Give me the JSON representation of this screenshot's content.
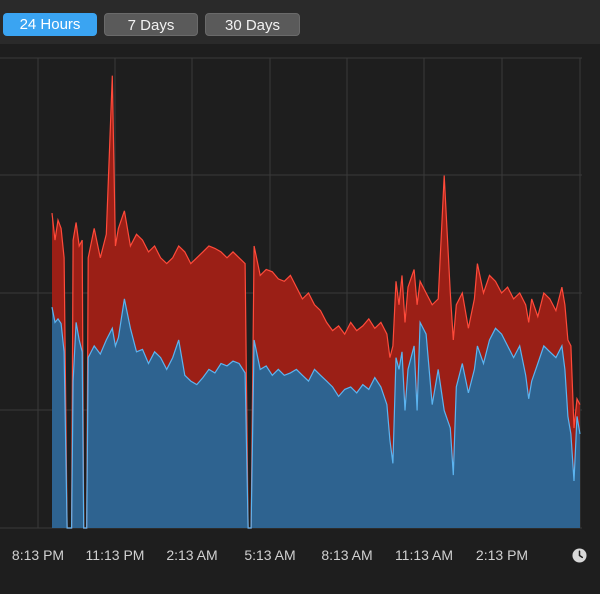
{
  "toolbar": {
    "tabs": [
      {
        "label": "24 Hours",
        "active": true
      },
      {
        "label": "7 Days",
        "active": false
      },
      {
        "label": "30 Days",
        "active": false
      }
    ]
  },
  "colors": {
    "series_top": "#9b1f16",
    "series_top_line": "#ff4a3a",
    "series_bottom": "#2e6390",
    "series_bottom_line": "#5bb4f0",
    "grid": "#3a3a3a",
    "active_tab": "#3aa4f2"
  },
  "icons": {
    "time_icon": "clock-icon"
  },
  "chart_data": {
    "type": "area",
    "stacked": true,
    "grid": true,
    "x_tick_labels": [
      "8:13 PM",
      "11:13 PM",
      "2:13 AM",
      "5:13 AM",
      "8:13 AM",
      "11:13 AM",
      "2:13 PM"
    ],
    "x_hours_span": [
      0,
      20.6
    ],
    "y_range": [
      0,
      4
    ],
    "series": [
      {
        "role": "bottom",
        "samples": [
          [
            0.0,
            1.88
          ],
          [
            0.1,
            1.75
          ],
          [
            0.2,
            1.78
          ],
          [
            0.3,
            1.74
          ],
          [
            0.4,
            1.5
          ],
          [
            0.5,
            0.0
          ],
          [
            0.65,
            0.0
          ],
          [
            0.7,
            1.25
          ],
          [
            0.8,
            1.75
          ],
          [
            0.9,
            1.6
          ],
          [
            1.0,
            1.5
          ],
          [
            1.05,
            0.0
          ],
          [
            1.15,
            0.0
          ],
          [
            1.2,
            1.45
          ],
          [
            1.4,
            1.55
          ],
          [
            1.6,
            1.48
          ],
          [
            1.8,
            1.6
          ],
          [
            2.0,
            1.7
          ],
          [
            2.1,
            1.55
          ],
          [
            2.2,
            1.62
          ],
          [
            2.4,
            1.95
          ],
          [
            2.6,
            1.7
          ],
          [
            2.8,
            1.5
          ],
          [
            3.0,
            1.52
          ],
          [
            3.2,
            1.4
          ],
          [
            3.4,
            1.5
          ],
          [
            3.6,
            1.45
          ],
          [
            3.8,
            1.35
          ],
          [
            4.0,
            1.45
          ],
          [
            4.2,
            1.6
          ],
          [
            4.4,
            1.3
          ],
          [
            4.6,
            1.25
          ],
          [
            4.8,
            1.22
          ],
          [
            5.0,
            1.28
          ],
          [
            5.2,
            1.35
          ],
          [
            5.4,
            1.32
          ],
          [
            5.6,
            1.4
          ],
          [
            5.8,
            1.38
          ],
          [
            6.0,
            1.42
          ],
          [
            6.2,
            1.4
          ],
          [
            6.4,
            1.32
          ],
          [
            6.5,
            0.0
          ],
          [
            6.6,
            0.0
          ],
          [
            6.7,
            1.6
          ],
          [
            6.9,
            1.35
          ],
          [
            7.1,
            1.38
          ],
          [
            7.3,
            1.3
          ],
          [
            7.5,
            1.35
          ],
          [
            7.7,
            1.3
          ],
          [
            7.9,
            1.32
          ],
          [
            8.1,
            1.35
          ],
          [
            8.3,
            1.3
          ],
          [
            8.5,
            1.25
          ],
          [
            8.7,
            1.35
          ],
          [
            8.9,
            1.3
          ],
          [
            9.1,
            1.25
          ],
          [
            9.3,
            1.2
          ],
          [
            9.5,
            1.12
          ],
          [
            9.7,
            1.18
          ],
          [
            9.9,
            1.2
          ],
          [
            10.1,
            1.15
          ],
          [
            10.3,
            1.22
          ],
          [
            10.5,
            1.18
          ],
          [
            10.7,
            1.28
          ],
          [
            10.9,
            1.2
          ],
          [
            11.1,
            1.05
          ],
          [
            11.2,
            0.75
          ],
          [
            11.3,
            0.55
          ],
          [
            11.4,
            1.45
          ],
          [
            11.5,
            1.35
          ],
          [
            11.6,
            1.5
          ],
          [
            11.7,
            1.0
          ],
          [
            11.8,
            1.35
          ],
          [
            12.0,
            1.55
          ],
          [
            12.1,
            1.0
          ],
          [
            12.2,
            1.75
          ],
          [
            12.4,
            1.65
          ],
          [
            12.6,
            1.05
          ],
          [
            12.8,
            1.35
          ],
          [
            13.0,
            1.0
          ],
          [
            13.2,
            0.85
          ],
          [
            13.3,
            0.45
          ],
          [
            13.4,
            1.2
          ],
          [
            13.6,
            1.4
          ],
          [
            13.8,
            1.15
          ],
          [
            14.0,
            1.35
          ],
          [
            14.1,
            1.55
          ],
          [
            14.3,
            1.4
          ],
          [
            14.5,
            1.6
          ],
          [
            14.7,
            1.7
          ],
          [
            14.9,
            1.65
          ],
          [
            15.1,
            1.55
          ],
          [
            15.3,
            1.45
          ],
          [
            15.5,
            1.55
          ],
          [
            15.7,
            1.3
          ],
          [
            15.8,
            1.1
          ],
          [
            15.9,
            1.25
          ],
          [
            16.1,
            1.4
          ],
          [
            16.3,
            1.55
          ],
          [
            16.5,
            1.5
          ],
          [
            16.7,
            1.45
          ],
          [
            16.9,
            1.55
          ],
          [
            17.0,
            1.35
          ],
          [
            17.1,
            0.95
          ],
          [
            17.2,
            0.8
          ],
          [
            17.3,
            0.4
          ],
          [
            17.4,
            0.95
          ],
          [
            17.5,
            0.8
          ]
        ]
      },
      {
        "role": "total",
        "samples": [
          [
            0.0,
            2.68
          ],
          [
            0.1,
            2.45
          ],
          [
            0.2,
            2.62
          ],
          [
            0.3,
            2.55
          ],
          [
            0.4,
            2.3
          ],
          [
            0.5,
            0.0
          ],
          [
            0.65,
            0.0
          ],
          [
            0.7,
            2.45
          ],
          [
            0.8,
            2.6
          ],
          [
            0.9,
            2.4
          ],
          [
            1.0,
            2.45
          ],
          [
            1.05,
            0.0
          ],
          [
            1.15,
            0.0
          ],
          [
            1.2,
            2.3
          ],
          [
            1.4,
            2.55
          ],
          [
            1.6,
            2.3
          ],
          [
            1.8,
            2.5
          ],
          [
            2.0,
            3.85
          ],
          [
            2.1,
            2.4
          ],
          [
            2.2,
            2.55
          ],
          [
            2.4,
            2.7
          ],
          [
            2.6,
            2.4
          ],
          [
            2.8,
            2.5
          ],
          [
            3.0,
            2.45
          ],
          [
            3.2,
            2.35
          ],
          [
            3.4,
            2.4
          ],
          [
            3.6,
            2.3
          ],
          [
            3.8,
            2.25
          ],
          [
            4.0,
            2.3
          ],
          [
            4.2,
            2.4
          ],
          [
            4.4,
            2.35
          ],
          [
            4.6,
            2.25
          ],
          [
            4.8,
            2.3
          ],
          [
            5.0,
            2.35
          ],
          [
            5.2,
            2.4
          ],
          [
            5.4,
            2.38
          ],
          [
            5.6,
            2.35
          ],
          [
            5.8,
            2.3
          ],
          [
            6.0,
            2.35
          ],
          [
            6.2,
            2.3
          ],
          [
            6.4,
            2.25
          ],
          [
            6.5,
            0.0
          ],
          [
            6.6,
            0.0
          ],
          [
            6.7,
            2.4
          ],
          [
            6.9,
            2.15
          ],
          [
            7.1,
            2.2
          ],
          [
            7.3,
            2.18
          ],
          [
            7.5,
            2.12
          ],
          [
            7.7,
            2.1
          ],
          [
            7.9,
            2.15
          ],
          [
            8.1,
            2.05
          ],
          [
            8.3,
            1.95
          ],
          [
            8.5,
            2.0
          ],
          [
            8.7,
            1.9
          ],
          [
            8.9,
            1.85
          ],
          [
            9.1,
            1.75
          ],
          [
            9.3,
            1.68
          ],
          [
            9.5,
            1.72
          ],
          [
            9.7,
            1.65
          ],
          [
            9.9,
            1.75
          ],
          [
            10.1,
            1.68
          ],
          [
            10.3,
            1.72
          ],
          [
            10.5,
            1.78
          ],
          [
            10.7,
            1.7
          ],
          [
            10.9,
            1.75
          ],
          [
            11.1,
            1.65
          ],
          [
            11.2,
            1.45
          ],
          [
            11.3,
            1.55
          ],
          [
            11.4,
            2.1
          ],
          [
            11.5,
            1.9
          ],
          [
            11.6,
            2.15
          ],
          [
            11.7,
            1.75
          ],
          [
            11.8,
            2.05
          ],
          [
            12.0,
            2.2
          ],
          [
            12.1,
            1.9
          ],
          [
            12.2,
            2.1
          ],
          [
            12.4,
            2.0
          ],
          [
            12.6,
            1.9
          ],
          [
            12.8,
            1.95
          ],
          [
            13.0,
            3.0
          ],
          [
            13.2,
            2.0
          ],
          [
            13.3,
            1.6
          ],
          [
            13.4,
            1.9
          ],
          [
            13.6,
            2.0
          ],
          [
            13.8,
            1.7
          ],
          [
            14.0,
            1.95
          ],
          [
            14.1,
            2.25
          ],
          [
            14.3,
            2.0
          ],
          [
            14.5,
            2.15
          ],
          [
            14.7,
            2.1
          ],
          [
            14.9,
            2.0
          ],
          [
            15.1,
            2.05
          ],
          [
            15.3,
            1.95
          ],
          [
            15.5,
            2.0
          ],
          [
            15.7,
            1.9
          ],
          [
            15.8,
            1.75
          ],
          [
            15.9,
            1.95
          ],
          [
            16.1,
            1.8
          ],
          [
            16.3,
            2.0
          ],
          [
            16.5,
            1.95
          ],
          [
            16.7,
            1.85
          ],
          [
            16.9,
            2.05
          ],
          [
            17.0,
            1.9
          ],
          [
            17.1,
            1.6
          ],
          [
            17.2,
            1.55
          ],
          [
            17.3,
            0.85
          ],
          [
            17.4,
            1.1
          ],
          [
            17.5,
            1.05
          ]
        ]
      }
    ]
  }
}
